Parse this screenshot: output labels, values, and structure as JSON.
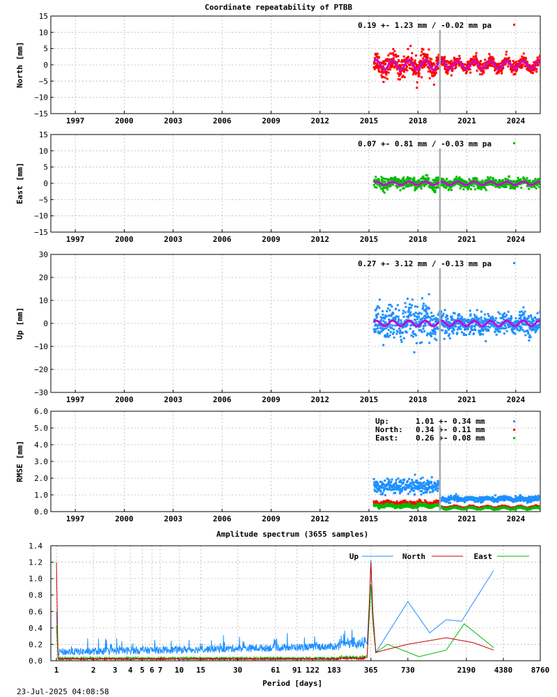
{
  "page": {
    "title": "Coordinate repeatability of PTBB",
    "timestamp": "23-Jul-2025 04:08:58"
  },
  "chart_data": [
    {
      "id": "north",
      "type": "scatter",
      "ylabel": "North [mm]",
      "ylim": [
        -15,
        15
      ],
      "yticks": [
        -15,
        -10,
        -5,
        0,
        5,
        10,
        15
      ],
      "ytick_labels": [
        "−15",
        "−10",
        "−5",
        "0",
        "5",
        "10",
        "15"
      ],
      "xlim": [
        1995.5,
        2025.5
      ],
      "xticks": [
        1997,
        2000,
        2003,
        2006,
        2009,
        2012,
        2015,
        2018,
        2021,
        2024
      ],
      "color": "#ff0000",
      "legend": "0.19 +- 1.23 mm / -0.02 mm pa",
      "data_start": 2015.3,
      "data_end": 2025.5,
      "break_epoch": 2019.35,
      "seasonal_amplitude": 1.5,
      "seasonal_amplitude_after_break": 1.2,
      "scatter_sd_before": 1.6,
      "scatter_sd_after": 0.9
    },
    {
      "id": "east",
      "type": "scatter",
      "ylabel": "East [mm]",
      "ylim": [
        -15,
        15
      ],
      "yticks": [
        -15,
        -10,
        -5,
        0,
        5,
        10,
        15
      ],
      "ytick_labels": [
        "−15",
        "−10",
        "−5",
        "0",
        "5",
        "10",
        "15"
      ],
      "xlim": [
        1995.5,
        2025.5
      ],
      "xticks": [
        1997,
        2000,
        2003,
        2006,
        2009,
        2012,
        2015,
        2018,
        2021,
        2024
      ],
      "color": "#00bb00",
      "legend": "0.07 +- 0.81 mm / -0.03 mm pa",
      "data_start": 2015.3,
      "data_end": 2025.5,
      "break_epoch": 2019.35,
      "seasonal_amplitude": 0.5,
      "seasonal_amplitude_after_break": 0.5,
      "scatter_sd_before": 0.9,
      "scatter_sd_after": 0.7
    },
    {
      "id": "up",
      "type": "scatter",
      "ylabel": "Up [mm]",
      "ylim": [
        -30,
        30
      ],
      "yticks": [
        -30,
        -20,
        -10,
        0,
        10,
        20,
        30
      ],
      "ytick_labels": [
        "−30",
        "−20",
        "−10",
        "0",
        "10",
        "20",
        "30"
      ],
      "xlim": [
        1995.5,
        2025.5
      ],
      "xticks": [
        1997,
        2000,
        2003,
        2006,
        2009,
        2012,
        2015,
        2018,
        2021,
        2024
      ],
      "color": "#1e90ff",
      "legend": "0.27 +- 3.12 mm / -0.13 mm pa",
      "data_start": 2015.3,
      "data_end": 2025.5,
      "break_epoch": 2019.35,
      "seasonal_amplitude": 1.2,
      "seasonal_amplitude_after_break": 1.2,
      "scatter_sd_before": 4.0,
      "scatter_sd_after": 2.2
    },
    {
      "id": "rmse",
      "type": "scatter",
      "ylabel": "RMSE [mm]",
      "ylim": [
        0,
        6
      ],
      "yticks": [
        0,
        1,
        2,
        3,
        4,
        5,
        6
      ],
      "ytick_labels": [
        "0.0",
        "1.0",
        "2.0",
        "3.0",
        "4.0",
        "5.0",
        "6.0"
      ],
      "xlim": [
        1995.5,
        2025.5
      ],
      "xticks": [
        1997,
        2000,
        2003,
        2006,
        2009,
        2012,
        2015,
        2018,
        2021,
        2024
      ],
      "break_epoch": 2019.35,
      "data_start": 2015.3,
      "data_end": 2025.5,
      "series": [
        {
          "name": "Up:",
          "stats": "1.01 +- 0.34 mm",
          "color": "#1e90ff",
          "level_before": 1.5,
          "level_after": 0.75
        },
        {
          "name": "North:",
          "stats": "0.34 +- 0.11 mm",
          "color": "#ff0000",
          "level_before": 0.5,
          "level_after": 0.26
        },
        {
          "name": "East:",
          "stats": "0.26 +- 0.08 mm",
          "color": "#00bb00",
          "level_before": 0.35,
          "level_after": 0.2
        }
      ]
    },
    {
      "id": "spectrum",
      "type": "line",
      "title": "Amplitude spectrum (3655 samples)",
      "xlabel": "Period [days]",
      "xscale": "log",
      "xlim": [
        0.9,
        8760
      ],
      "ylim": [
        0,
        1.4
      ],
      "yticks": [
        0,
        0.2,
        0.4,
        0.6,
        0.8,
        1.0,
        1.2,
        1.4
      ],
      "ytick_labels": [
        "0.0",
        "0.2",
        "0.4",
        "0.6",
        "0.8",
        "1.0",
        "1.2",
        "1.4"
      ],
      "xticks": [
        1,
        2,
        3,
        4,
        5,
        6,
        7,
        10,
        15,
        30,
        61,
        91,
        122,
        183,
        365,
        730,
        2190,
        4380,
        8760
      ],
      "xtick_labels": [
        "1",
        "2",
        "3",
        "4",
        "5",
        "6",
        "7",
        "10",
        "15",
        "30",
        "61",
        "91",
        "122",
        "183",
        "365",
        "730",
        "2190",
        "4380",
        "8760"
      ],
      "series": [
        {
          "name": "Up",
          "color": "#1e90ff",
          "noise_level": 0.1,
          "peaks": [
            [
              1,
              0.6
            ],
            [
              365,
              1.23
            ],
            [
              730,
              0.72
            ],
            [
              1100,
              0.34
            ],
            [
              1500,
              0.5
            ],
            [
              2000,
              0.48
            ],
            [
              3650,
              1.1
            ]
          ]
        },
        {
          "name": "North",
          "color": "#cc0000",
          "noise_level": 0.02,
          "peaks": [
            [
              1,
              1.2
            ],
            [
              365,
              1.2
            ],
            [
              500,
              0.14
            ],
            [
              730,
              0.2
            ],
            [
              1500,
              0.28
            ],
            [
              2500,
              0.22
            ],
            [
              3650,
              0.13
            ]
          ]
        },
        {
          "name": "East",
          "color": "#00bb00",
          "noise_level": 0.03,
          "peaks": [
            [
              1,
              0.43
            ],
            [
              365,
              0.93
            ],
            [
              500,
              0.2
            ],
            [
              900,
              0.05
            ],
            [
              1500,
              0.13
            ],
            [
              2100,
              0.45
            ],
            [
              3650,
              0.16
            ]
          ]
        }
      ]
    }
  ]
}
